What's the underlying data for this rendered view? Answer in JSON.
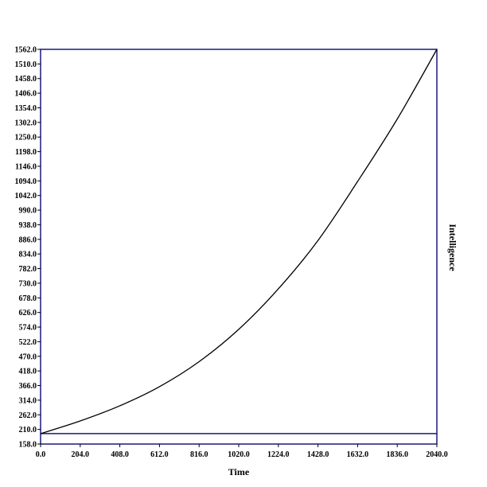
{
  "chart_data": {
    "type": "line",
    "title": "",
    "xlabel": "Time",
    "ylabel": "Intelligence",
    "xlim": [
      0,
      2040
    ],
    "ylim": [
      158,
      1562
    ],
    "grid": false,
    "x_ticks": [
      0,
      204,
      408,
      612,
      816,
      1020,
      1224,
      1428,
      1632,
      1836,
      2040
    ],
    "y_ticks": [
      158,
      210,
      262,
      314,
      366,
      418,
      470,
      522,
      574,
      626,
      678,
      730,
      782,
      834,
      886,
      938,
      990,
      1042,
      1094,
      1146,
      1198,
      1250,
      1302,
      1354,
      1406,
      1458,
      1510,
      1562
    ],
    "x_tick_labels": [
      "0.0",
      "204.0",
      "408.0",
      "612.0",
      "816.0",
      "1020.0",
      "1224.0",
      "1428.0",
      "1632.0",
      "1836.0",
      "2040.0"
    ],
    "y_tick_labels": [
      "158.0",
      "210.0",
      "262.0",
      "314.0",
      "366.0",
      "418.0",
      "470.0",
      "522.0",
      "574.0",
      "626.0",
      "678.0",
      "730.0",
      "782.0",
      "834.0",
      "886.0",
      "938.0",
      "990.0",
      "1042.0",
      "1094.0",
      "1146.0",
      "1198.0",
      "1250.0",
      "1302.0",
      "1354.0",
      "1406.0",
      "1458.0",
      "1510.0",
      "1562.0"
    ],
    "colors": {
      "frame": "#1a1a7a",
      "line": "#000000",
      "reference_line": "#1a1a7a"
    },
    "series": [
      {
        "color": "#000000",
        "x": [
          0,
          204,
          408,
          612,
          816,
          1020,
          1224,
          1428,
          1632,
          1836,
          2040
        ],
        "y": [
          195,
          240,
          294,
          362,
          451,
          566,
          710,
          882,
          1092,
          1314,
          1562
        ]
      }
    ],
    "reference_line": {
      "y": 195
    }
  }
}
